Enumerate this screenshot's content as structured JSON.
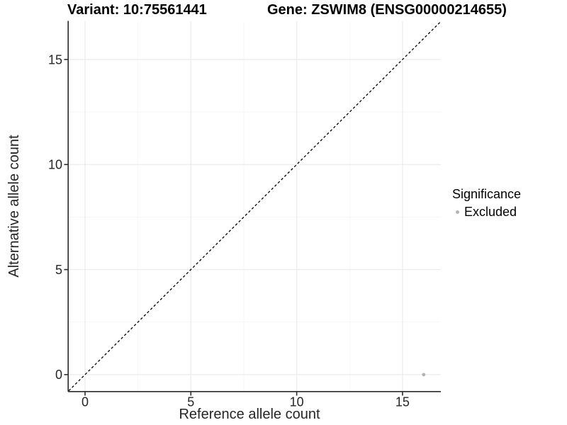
{
  "header": {
    "variant_title": "Variant: 10:75561441",
    "gene_title": "Gene: ZSWIM8 (ENSG00000214655)"
  },
  "chart_data": {
    "type": "scatter",
    "titles": [
      "Variant: 10:75561441",
      "Gene: ZSWIM8 (ENSG00000214655)"
    ],
    "xlabel": "Reference allele count",
    "ylabel": "Alternative allele count",
    "xlim": [
      -0.77,
      16.81
    ],
    "ylim": [
      -0.78,
      16.82
    ],
    "x_ticks": [
      0,
      5,
      10,
      15
    ],
    "y_ticks": [
      0,
      5,
      10,
      15
    ],
    "x_minor_ticks": [
      2.5,
      7.5,
      12.5
    ],
    "y_minor_ticks": [
      2.5,
      7.5,
      12.5
    ],
    "grid": "major+minor",
    "reference_line": {
      "type": "identity y=x",
      "style": "dashed",
      "color": "#000000"
    },
    "series": [
      {
        "name": "Excluded",
        "color": "#b4b4b4",
        "points": [
          {
            "x": 16,
            "y": 0
          }
        ]
      }
    ],
    "legend": {
      "title": "Significance",
      "position": "right",
      "items": [
        {
          "label": "Excluded",
          "color": "#b4b4b4",
          "marker": "circle-icon"
        }
      ]
    }
  },
  "colors": {
    "background": "#ffffff",
    "grid_major": "#ebebeb",
    "grid_minor": "#f5f5f5",
    "axis_line": "#2b2b2b",
    "tick_text": "#262626",
    "title_text": "#000000",
    "point": "#b4b4b4"
  }
}
